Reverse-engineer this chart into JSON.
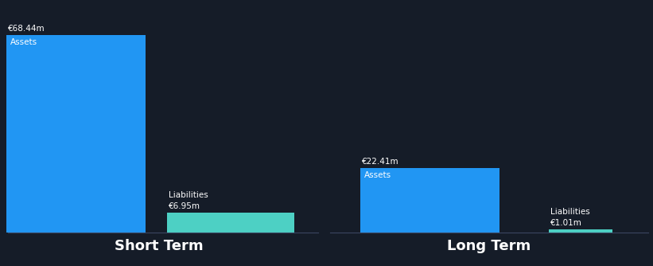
{
  "background_color": "#151c28",
  "short_term": {
    "assets_value": 68.44,
    "liabilities_value": 6.95,
    "assets_color": "#2196f3",
    "liabilities_color": "#4dd0c4",
    "label": "Short Term"
  },
  "long_term": {
    "assets_value": 22.41,
    "liabilities_value": 1.01,
    "assets_color": "#2196f3",
    "liabilities_color": "#4dd0c4",
    "label": "Long Term"
  },
  "assets_label": "Assets",
  "liabilities_label": "Liabilities",
  "text_color": "#ffffff",
  "label_fontsize": 7.5,
  "value_fontsize": 7.5,
  "section_label_fontsize": 13,
  "divider_color": "#2a3348"
}
